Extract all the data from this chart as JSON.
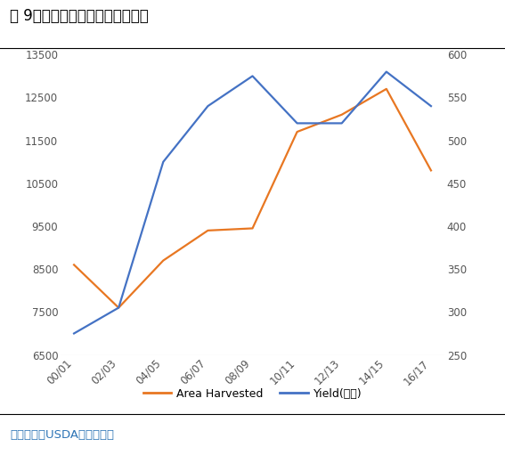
{
  "title": "图 9：印度棉花种植面积、单产图",
  "source": "数据来源：USDA、一德期货",
  "x_labels": [
    "00/01",
    "02/03",
    "04/05",
    "06/07",
    "08/09",
    "10/11",
    "12/13",
    "14/15",
    "16/17"
  ],
  "area_harvested": [
    8600,
    7600,
    8700,
    9400,
    9450,
    11700,
    12100,
    12700,
    10800
  ],
  "yield_values": [
    275,
    305,
    475,
    540,
    575,
    520,
    520,
    580,
    540
  ],
  "area_color": "#E87722",
  "yield_color": "#4472C4",
  "ylim_left": [
    6500,
    13500
  ],
  "ylim_right": [
    250,
    600
  ],
  "yticks_left": [
    6500,
    7500,
    8500,
    9500,
    10500,
    11500,
    12500,
    13500
  ],
  "yticks_right": [
    250,
    300,
    350,
    400,
    450,
    500,
    550,
    600
  ],
  "legend_area": "Area Harvested",
  "legend_yield": "Yield(右轴)",
  "title_fontsize": 12,
  "axis_fontsize": 8.5,
  "source_fontsize": 9.5,
  "line_width": 1.6
}
